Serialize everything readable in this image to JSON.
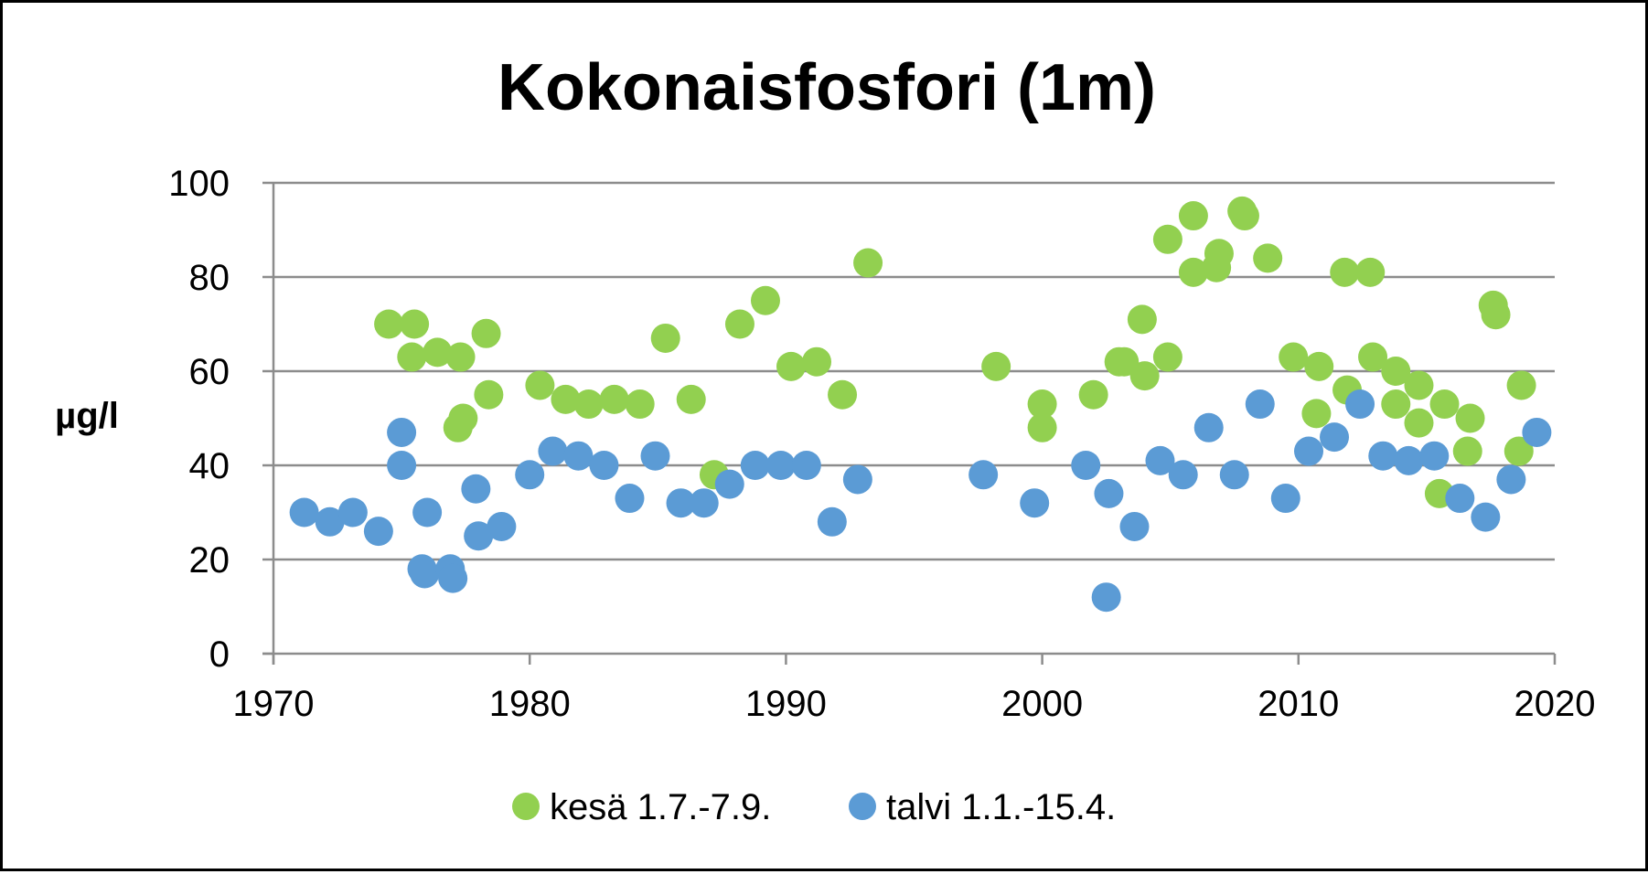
{
  "chart_data": {
    "type": "scatter",
    "title": "Kokonaisfosfori (1m)",
    "xlabel": "",
    "ylabel": "µg/l",
    "xlim": [
      1970,
      2020
    ],
    "ylim": [
      0,
      100
    ],
    "x_ticks": [
      "1970",
      "1980",
      "1990",
      "2000",
      "2010",
      "2020"
    ],
    "y_ticks": [
      "0",
      "20",
      "40",
      "60",
      "80",
      "100"
    ],
    "grid": true,
    "legend_position": "bottom",
    "series": [
      {
        "name": "kesä 1.7.-7.9.",
        "color": "#92d050",
        "x": [
          1974.5,
          1975.5,
          1975.4,
          1976.4,
          1977.3,
          1977.4,
          1977.2,
          1978.3,
          1978.4,
          1980.4,
          1981.4,
          1982.3,
          1983.3,
          1984.3,
          1985.3,
          1986.3,
          1987.2,
          1988.2,
          1989.2,
          1990.2,
          1991.2,
          1992.2,
          1993.2,
          1998.2,
          2000.0,
          2000.0,
          2002.0,
          2003.0,
          2003.2,
          2003.9,
          2004.0,
          2004.9,
          2004.9,
          2005.9,
          2005.9,
          2006.9,
          2006.8,
          2007.8,
          2007.9,
          2008.8,
          2009.8,
          2010.8,
          2010.7,
          2011.8,
          2011.9,
          2012.8,
          2012.9,
          2013.8,
          2013.8,
          2014.7,
          2014.7,
          2015.7,
          2015.5,
          2016.7,
          2016.6,
          2017.6,
          2017.7,
          2018.7,
          2018.6
        ],
        "y": [
          70,
          70,
          63,
          64,
          63,
          50,
          48,
          68,
          55,
          57,
          54,
          53,
          54,
          53,
          67,
          54,
          38,
          70,
          75,
          61,
          62,
          55,
          83,
          61,
          53,
          48,
          55,
          62,
          62,
          71,
          59,
          88,
          63,
          93,
          81,
          85,
          82,
          94,
          93,
          84,
          63,
          61,
          51,
          81,
          56,
          81,
          63,
          60,
          53,
          57,
          49,
          53,
          34,
          50,
          43,
          74,
          72,
          57,
          43
        ]
      },
      {
        "name": "talvi 1.1.-15.4.",
        "color": "#5b9bd5",
        "x": [
          1971.2,
          1972.2,
          1973.1,
          1974.1,
          1975.0,
          1975.0,
          1975.8,
          1975.9,
          1976.0,
          1976.9,
          1977.0,
          1977.9,
          1978.0,
          1978.9,
          1980.0,
          1980.9,
          1981.9,
          1982.9,
          1983.9,
          1984.9,
          1985.9,
          1986.8,
          1987.8,
          1988.8,
          1989.8,
          1990.8,
          1991.8,
          1992.8,
          1997.7,
          1999.7,
          2001.7,
          2002.5,
          2002.6,
          2003.6,
          2004.6,
          2005.5,
          2006.5,
          2007.5,
          2008.5,
          2009.5,
          2010.4,
          2011.4,
          2012.4,
          2013.3,
          2014.3,
          2015.3,
          2016.3,
          2017.3,
          2018.3,
          2019.3
        ],
        "y": [
          30,
          28,
          30,
          26,
          47,
          40,
          18,
          17,
          30,
          18,
          16,
          35,
          25,
          27,
          38,
          43,
          42,
          40,
          33,
          42,
          32,
          32,
          36,
          40,
          40,
          40,
          28,
          37,
          38,
          32,
          40,
          12,
          34,
          27,
          41,
          38,
          48,
          38,
          53,
          33,
          43,
          46,
          53,
          42,
          41,
          42,
          33,
          29,
          37,
          47
        ]
      }
    ]
  }
}
